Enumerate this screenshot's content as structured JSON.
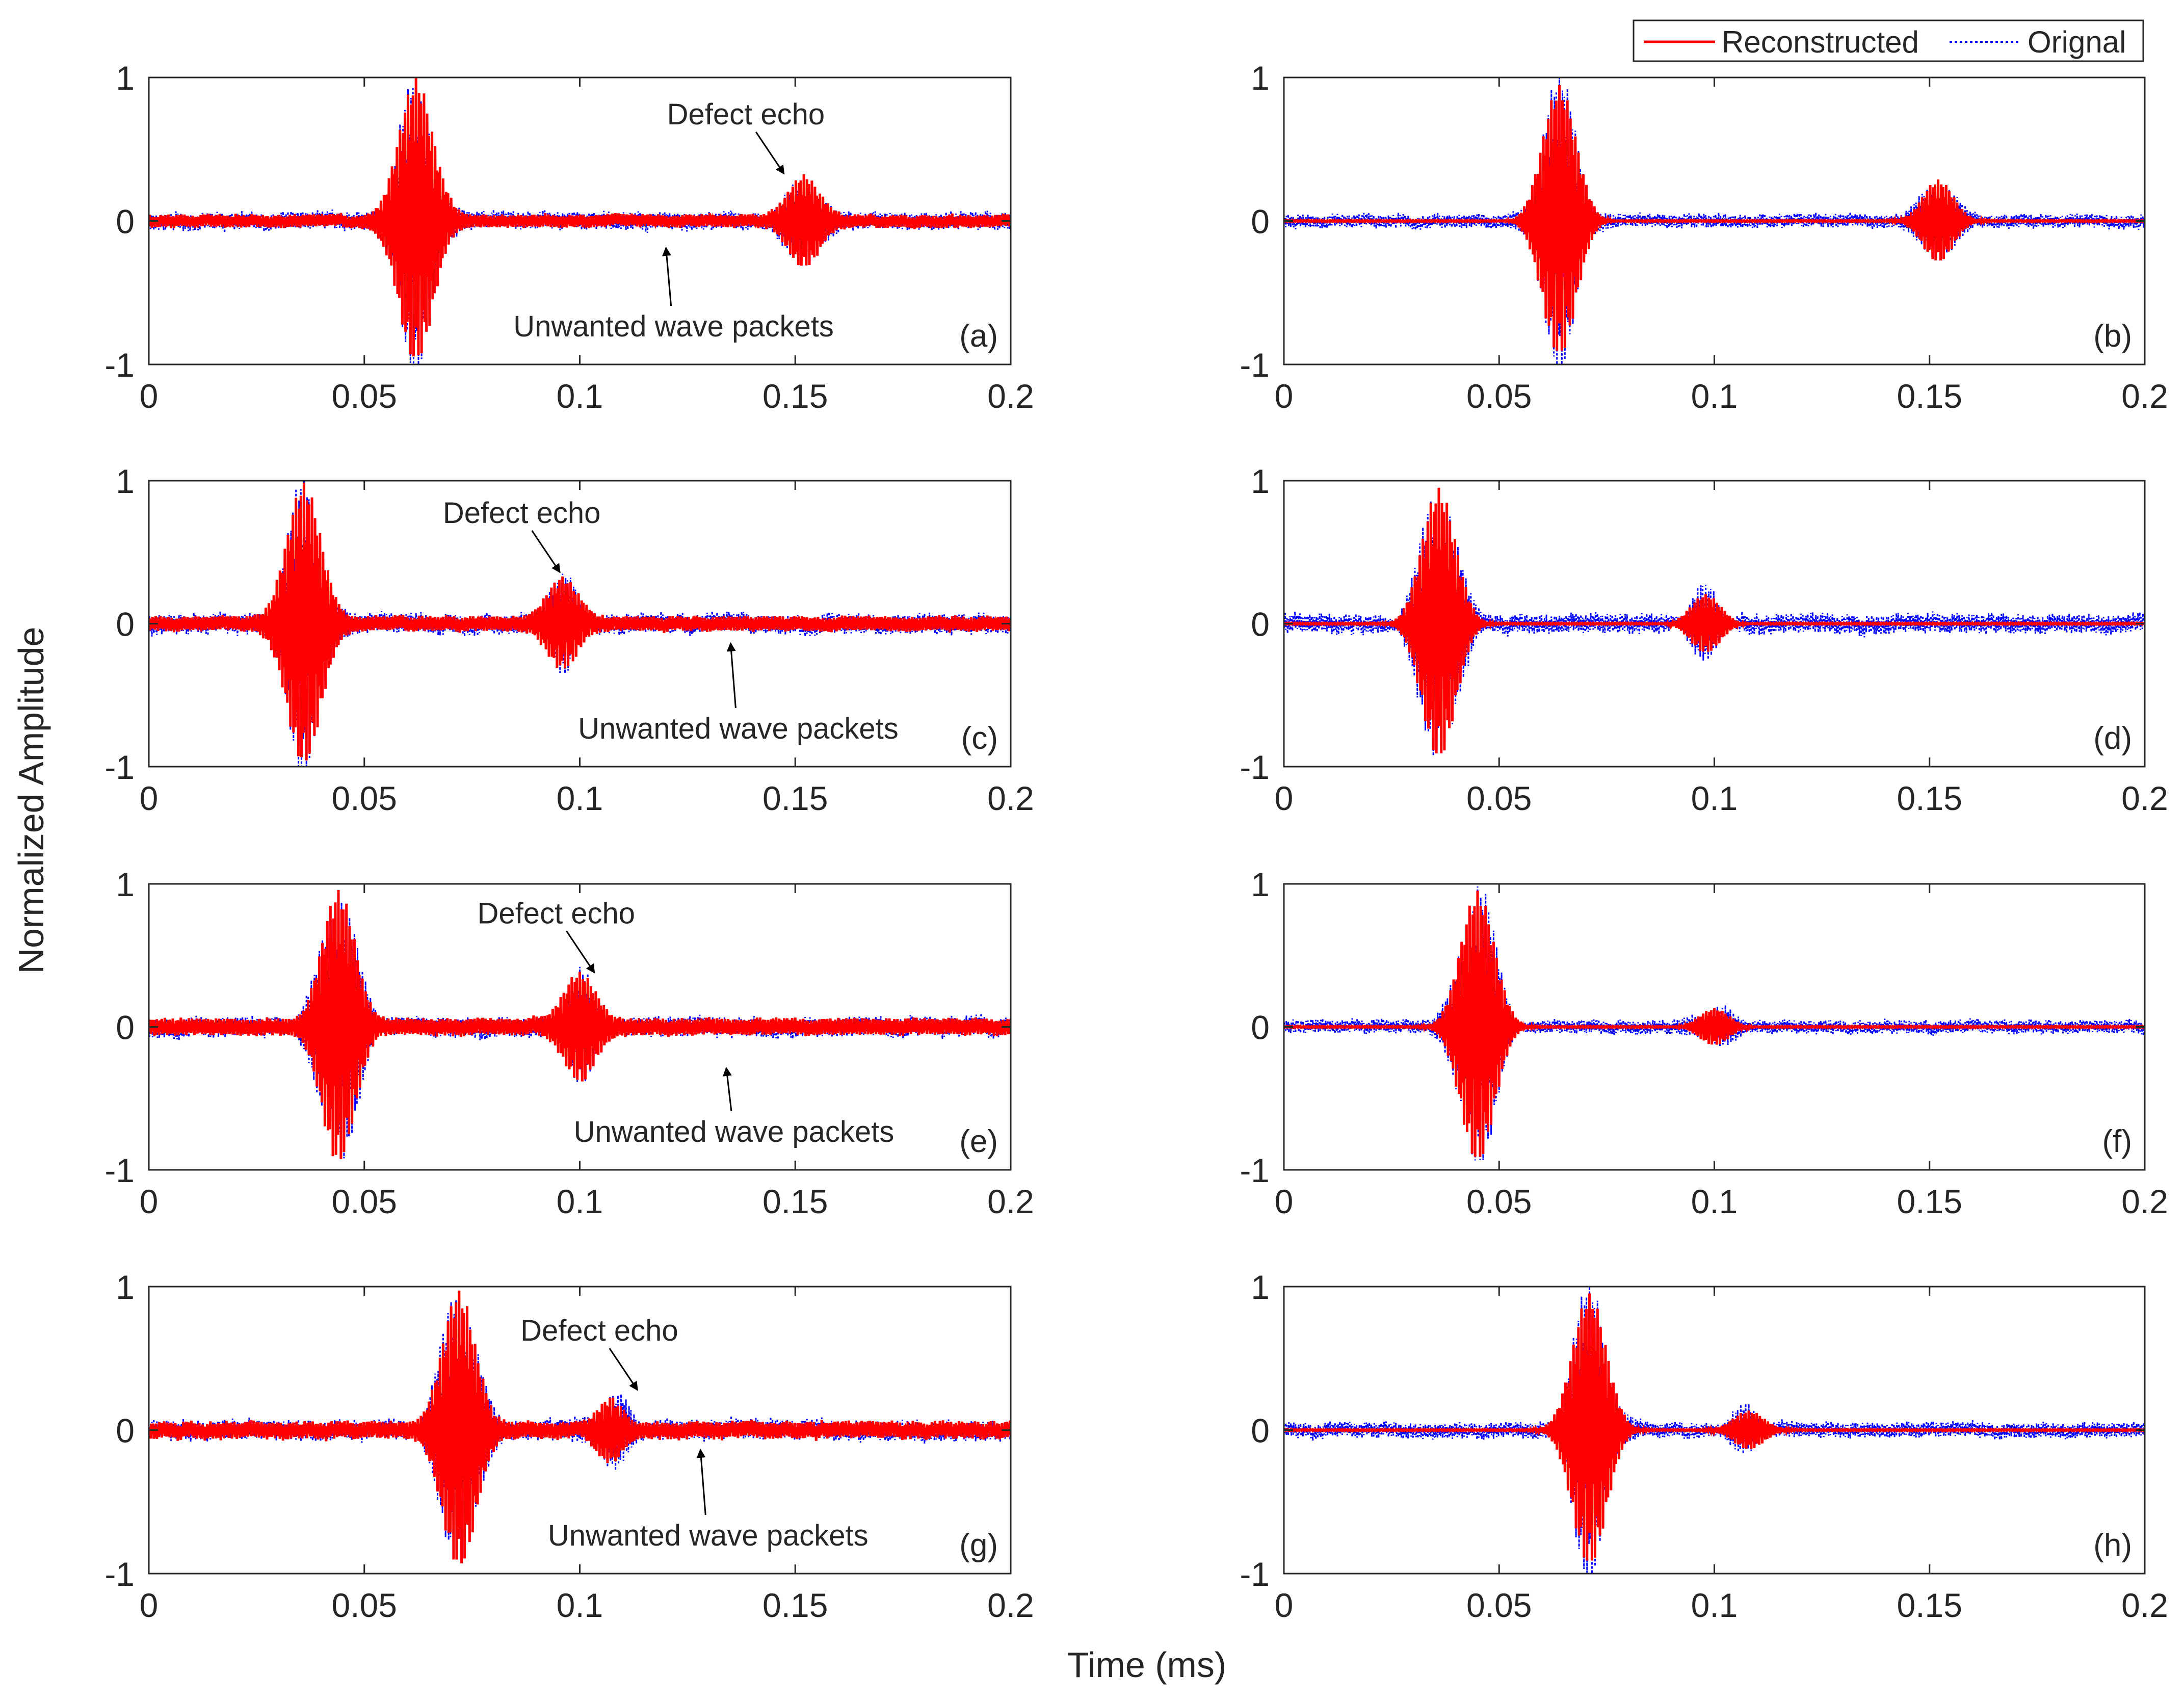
{
  "figure": {
    "ylabel": "Normalized Amplitude",
    "xlabel": "Time (ms)"
  },
  "legend": {
    "items": [
      {
        "label": "Reconstructed",
        "color": "#ff0000",
        "style": "solid"
      },
      {
        "label": "Orignal",
        "color": "#0000ff",
        "style": "dotted"
      }
    ],
    "placement": "top-right"
  },
  "chart_data": [
    {
      "type": "line",
      "panel": "(a)",
      "xlim": [
        0,
        0.2
      ],
      "ylim": [
        -1,
        1
      ],
      "xticks": [
        "0",
        "0.05",
        "0.1",
        "0.15",
        "0.2"
      ],
      "yticks": [
        "-1",
        "0",
        "1"
      ],
      "main_echo": {
        "center": 0.062,
        "amp": 1.0
      },
      "defect_echo": {
        "center": 0.152,
        "amp": 0.3
      },
      "reconstructed_noise": 0.06,
      "original_noise": 0.09,
      "seed": 11,
      "annotations": [
        {
          "text": "Defect echo",
          "target": [
            0.148,
            0.3
          ]
        },
        {
          "text": "Unwanted wave packets",
          "target": [
            0.12,
            -0.15
          ]
        }
      ]
    },
    {
      "type": "line",
      "panel": "(b)",
      "xlim": [
        0,
        0.2
      ],
      "ylim": [
        -1,
        1
      ],
      "xticks": [
        "0",
        "0.05",
        "0.1",
        "0.15",
        "0.2"
      ],
      "yticks": [
        "-1",
        "0",
        "1"
      ],
      "main_echo": {
        "center": 0.064,
        "amp": 1.0
      },
      "defect_echo": {
        "center": 0.152,
        "amp": 0.3
      },
      "reconstructed_noise": 0.005,
      "original_noise": 0.07,
      "seed": 23,
      "annotations": []
    },
    {
      "type": "line",
      "panel": "(c)",
      "xlim": [
        0,
        0.2
      ],
      "ylim": [
        -1,
        1
      ],
      "xticks": [
        "0",
        "0.05",
        "0.1",
        "0.15",
        "0.2"
      ],
      "yticks": [
        "-1",
        "0",
        "1"
      ],
      "main_echo": {
        "center": 0.036,
        "amp": 1.0
      },
      "defect_echo": {
        "center": 0.096,
        "amp": 0.3
      },
      "reconstructed_noise": 0.07,
      "original_noise": 0.1,
      "seed": 37,
      "annotations": [
        {
          "text": "Defect echo",
          "target": [
            0.096,
            0.33
          ]
        },
        {
          "text": "Unwanted wave packets",
          "target": [
            0.135,
            -0.1
          ]
        }
      ]
    },
    {
      "type": "line",
      "panel": "(d)",
      "xlim": [
        0,
        0.2
      ],
      "ylim": [
        -1,
        1
      ],
      "xticks": [
        "0",
        "0.05",
        "0.1",
        "0.15",
        "0.2"
      ],
      "yticks": [
        "-1",
        "0",
        "1"
      ],
      "main_echo": {
        "center": 0.036,
        "amp": 1.0
      },
      "defect_echo": {
        "center": 0.098,
        "amp": 0.22
      },
      "reconstructed_noise": 0.005,
      "original_noise": 0.1,
      "seed": 41,
      "annotations": []
    },
    {
      "type": "line",
      "panel": "(e)",
      "xlim": [
        0,
        0.2
      ],
      "ylim": [
        -1,
        1
      ],
      "xticks": [
        "0",
        "0.05",
        "0.1",
        "0.15",
        "0.2"
      ],
      "yticks": [
        "-1",
        "0",
        "1"
      ],
      "main_echo": {
        "center": 0.044,
        "amp": 1.0
      },
      "defect_echo": {
        "center": 0.1,
        "amp": 0.35
      },
      "reconstructed_noise": 0.08,
      "original_noise": 0.1,
      "seed": 53,
      "annotations": [
        {
          "text": "Defect echo",
          "target": [
            0.104,
            0.35
          ]
        },
        {
          "text": "Unwanted wave packets",
          "target": [
            0.134,
            -0.25
          ]
        }
      ]
    },
    {
      "type": "line",
      "panel": "(f)",
      "xlim": [
        0,
        0.2
      ],
      "ylim": [
        -1,
        1
      ],
      "xticks": [
        "0",
        "0.05",
        "0.1",
        "0.15",
        "0.2"
      ],
      "yticks": [
        "-1",
        "0",
        "1"
      ],
      "main_echo": {
        "center": 0.045,
        "amp": 1.0
      },
      "defect_echo": {
        "center": 0.1,
        "amp": 0.14
      },
      "reconstructed_noise": 0.005,
      "original_noise": 0.07,
      "seed": 61,
      "annotations": []
    },
    {
      "type": "line",
      "panel": "(g)",
      "xlim": [
        0,
        0.2
      ],
      "ylim": [
        -1,
        1
      ],
      "xticks": [
        "0",
        "0.05",
        "0.1",
        "0.15",
        "0.2"
      ],
      "yticks": [
        "-1",
        "0",
        "1"
      ],
      "main_echo": {
        "center": 0.072,
        "amp": 1.0
      },
      "defect_echo": {
        "center": 0.107,
        "amp": 0.25
      },
      "reconstructed_noise": 0.08,
      "original_noise": 0.1,
      "seed": 71,
      "annotations": [
        {
          "text": "Defect echo",
          "target": [
            0.114,
            0.25
          ]
        },
        {
          "text": "Unwanted wave packets",
          "target": [
            0.128,
            -0.1
          ]
        }
      ]
    },
    {
      "type": "line",
      "panel": "(h)",
      "xlim": [
        0,
        0.2
      ],
      "ylim": [
        -1,
        1
      ],
      "xticks": [
        "0",
        "0.05",
        "0.1",
        "0.15",
        "0.2"
      ],
      "yticks": [
        "-1",
        "0",
        "1"
      ],
      "main_echo": {
        "center": 0.071,
        "amp": 1.0
      },
      "defect_echo": {
        "center": 0.108,
        "amp": 0.14
      },
      "reconstructed_noise": 0.005,
      "original_noise": 0.08,
      "seed": 83,
      "annotations": []
    }
  ]
}
